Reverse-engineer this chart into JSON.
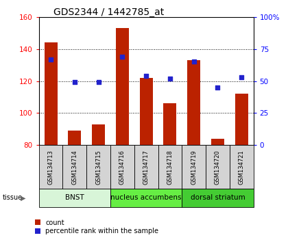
{
  "title": "GDS2344 / 1442785_at",
  "samples": [
    "GSM134713",
    "GSM134714",
    "GSM134715",
    "GSM134716",
    "GSM134717",
    "GSM134718",
    "GSM134719",
    "GSM134720",
    "GSM134721"
  ],
  "count_values": [
    144,
    89,
    93,
    153,
    122,
    106,
    133,
    84,
    112
  ],
  "percentile_values": [
    67,
    49,
    49,
    69,
    54,
    52,
    65,
    45,
    53
  ],
  "ylim_left": [
    80,
    160
  ],
  "ylim_right": [
    0,
    100
  ],
  "yticks_left": [
    80,
    100,
    120,
    140,
    160
  ],
  "yticks_right": [
    0,
    25,
    50,
    75,
    100
  ],
  "bar_color": "#bb2200",
  "dot_color": "#2222cc",
  "bar_bottom": 80,
  "groups": [
    {
      "label": "BNST",
      "start": 0,
      "end": 3,
      "color": "#d8f5d8"
    },
    {
      "label": "nucleus accumbens",
      "start": 3,
      "end": 6,
      "color": "#66ee44"
    },
    {
      "label": "dorsal striatum",
      "start": 6,
      "end": 9,
      "color": "#44cc33"
    }
  ],
  "tissue_label": "tissue",
  "legend_count": "count",
  "legend_percentile": "percentile rank within the sample",
  "title_fontsize": 10,
  "tick_fontsize": 7.5,
  "sample_fontsize": 6,
  "group_fontsize": 7.5
}
